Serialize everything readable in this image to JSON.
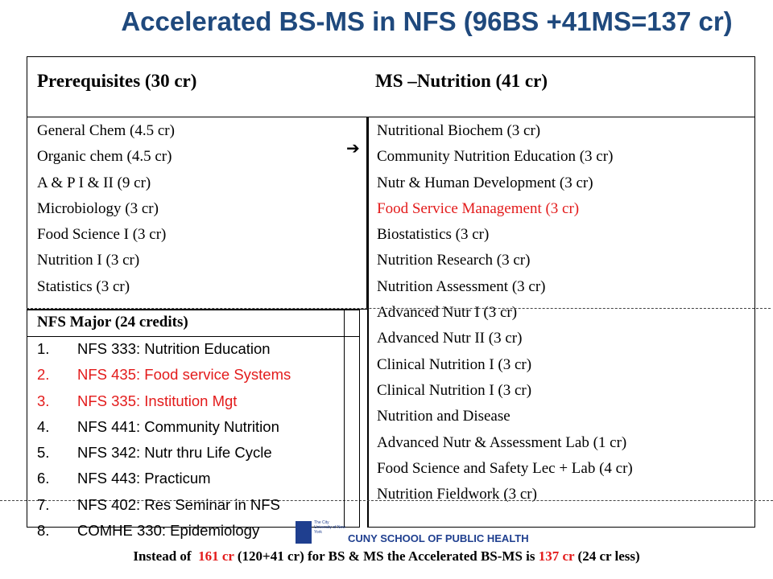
{
  "title": "Accelerated BS-MS in NFS  (96BS +41MS=137 cr)",
  "table": {
    "headers": [
      "Prerequisites (30 cr)",
      "MS –Nutrition (41 cr)"
    ],
    "arrow": "➔",
    "prerequisites": [
      "General Chem (4.5 cr)",
      "Organic chem (4.5 cr)",
      "A & P  I & II (9 cr)",
      "Microbiology (3 cr)",
      "Food Science I (3 cr)",
      "Nutrition I (3 cr)",
      "Statistics (3 cr)"
    ],
    "ms_courses": [
      {
        "text": "Nutritional Biochem (3 cr)",
        "highlight": false
      },
      {
        "text": "Community Nutrition Education (3 cr)",
        "highlight": false
      },
      {
        "text": "Nutr & Human Development (3 cr)",
        "highlight": false
      },
      {
        "text": "Food Service Management (3 cr)",
        "highlight": true
      },
      {
        "text": "Biostatistics (3 cr)",
        "highlight": false
      },
      {
        "text": "Nutrition Research (3 cr)",
        "highlight": false
      },
      {
        "text": "Nutrition Assessment (3 cr)",
        "highlight": false
      },
      {
        "text": "Advanced Nutr I (3 cr)",
        "highlight": false
      },
      {
        "text": "Advanced Nutr II (3 cr)",
        "highlight": false
      },
      {
        "text": "Clinical Nutrition I (3 cr)",
        "highlight": false
      },
      {
        "text": "Clinical Nutrition I (3 cr)",
        "highlight": false
      },
      {
        "text": "Nutrition and Disease",
        "highlight": false
      },
      {
        "text": "Advanced Nutr  & Assessment Lab (1 cr)",
        "highlight": false
      },
      {
        "text": "Food Science and Safety Lec + Lab (4 cr)",
        "highlight": false
      },
      {
        "text": "Nutrition Fieldwork (3 cr)",
        "highlight": false
      }
    ]
  },
  "major": {
    "title": "NFS Major (24 credits)",
    "items": [
      {
        "number": "1.",
        "text": "NFS 333: Nutrition Education",
        "highlight": false
      },
      {
        "number": "2.",
        "text": "NFS 435: Food service Systems",
        "highlight": true
      },
      {
        "number": "3.",
        "text": "NFS 335: Institution Mgt",
        "highlight": true
      },
      {
        "number": "4.",
        "text": "NFS 441: Community Nutrition",
        "highlight": false
      },
      {
        "number": "5.",
        "text": "NFS 342: Nutr thru Life Cycle",
        "highlight": false
      },
      {
        "number": "6.",
        "text": "NFS 443: Practicum",
        "highlight": false
      },
      {
        "number": "7.",
        "text": "NFS 402: Res Seminar in NFS",
        "highlight": false
      },
      {
        "number": "8.",
        "text": "COMHE 330: Epidemiology",
        "highlight": false
      }
    ]
  },
  "logo": {
    "small": "The City University of New York",
    "text": "CUNY SCHOOL OF PUBLIC HEALTH"
  },
  "footer": [
    {
      "text": "Instead of  ",
      "highlight": false
    },
    {
      "text": "161 cr",
      "highlight": true
    },
    {
      "text": " (120+41 cr) for BS & MS the Accelerated BS-MS is ",
      "highlight": false
    },
    {
      "text": "137 cr",
      "highlight": true
    },
    {
      "text": " (24 cr less)",
      "highlight": false
    }
  ]
}
